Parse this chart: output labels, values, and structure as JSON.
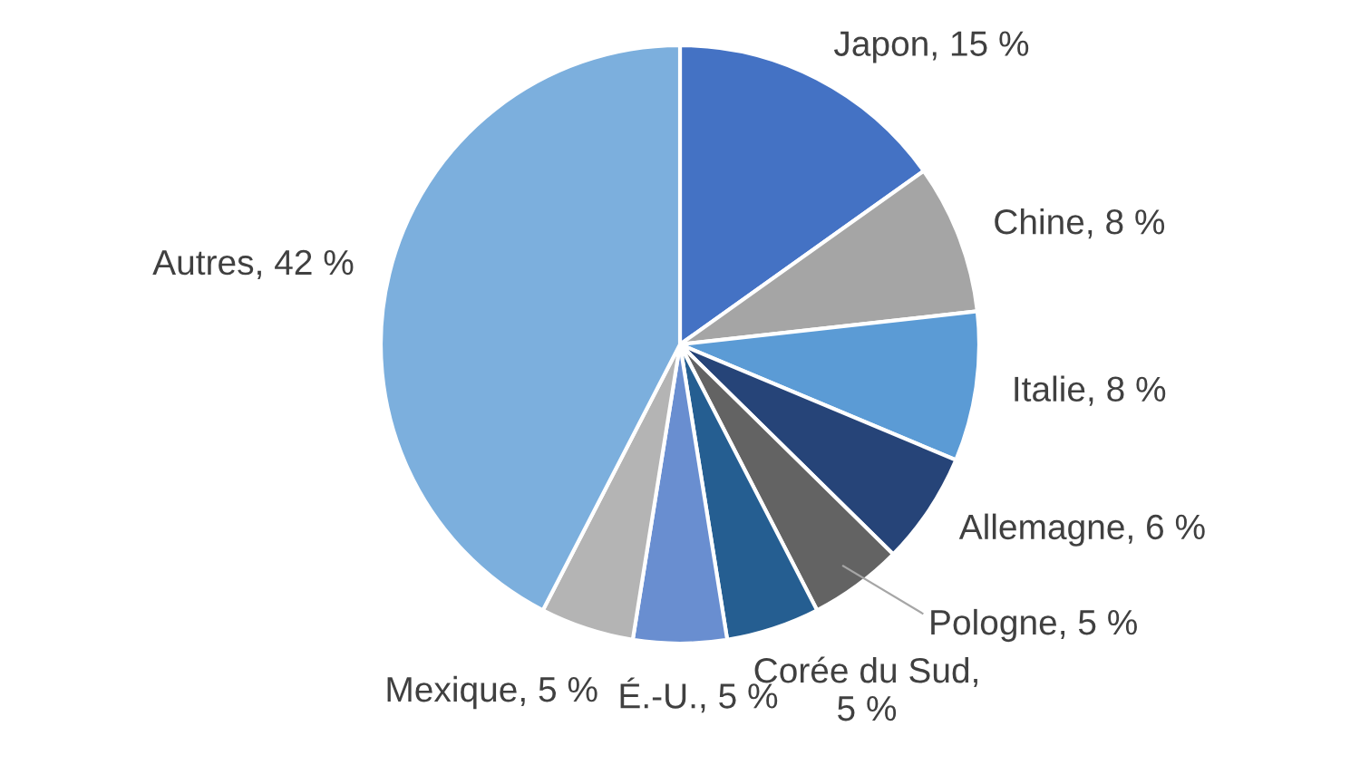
{
  "chart_data": {
    "type": "pie",
    "categories": [
      "Japon, 15 %",
      "Chine, 8 %",
      "Italie, 8 %",
      "Allemagne, 6 %",
      "Pologne, 5 %",
      "Corée du Sud, 5 %",
      "É.-U., 5 %",
      "Mexique, 5 %",
      "Autres, 42 %"
    ],
    "values": [
      15,
      8,
      8,
      6,
      5,
      5,
      5,
      5,
      42
    ],
    "colors": [
      "#4472c4",
      "#a5a5a5",
      "#5b9bd5",
      "#264478",
      "#636363",
      "#255e91",
      "#698ed0",
      "#b4b4b4",
      "#7cafdd"
    ]
  }
}
